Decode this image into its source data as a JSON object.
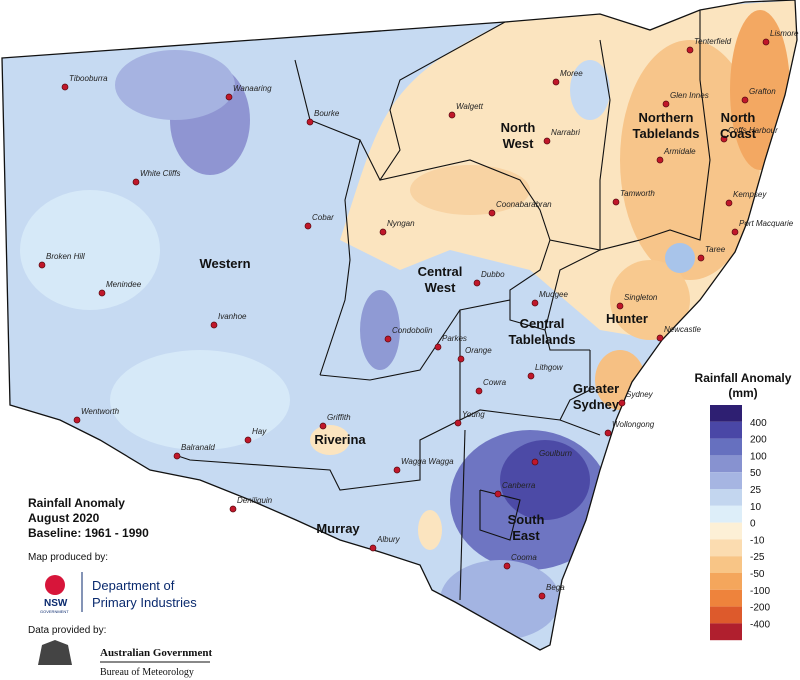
{
  "map": {
    "towns": [
      "Tibooburra",
      "Wanaaring",
      "Bourke",
      "White Cliffs",
      "Cobar",
      "Broken Hill",
      "Menindee",
      "Ivanhoe",
      "Wentworth",
      "Balranald",
      "Hay",
      "Griffith",
      "Deniliquin",
      "Wagga Wagga",
      "Albury",
      "Young",
      "Cowra",
      "Orange",
      "Parkes",
      "Condobolin",
      "Nyngan",
      "Dubbo",
      "Mudgee",
      "Lithgow",
      "Sydney",
      "Wollongong",
      "Canberra",
      "Goulburn",
      "Cooma",
      "Bega",
      "Moree",
      "Walgett",
      "Narrabri",
      "Coonabarabran",
      "Tamworth",
      "Armidale",
      "Glen Innes",
      "Tenterfield",
      "Lismore",
      "Grafton",
      "Coffs Harbour",
      "Kempsey",
      "Port Macquarie",
      "Taree",
      "Singleton",
      "Newcastle"
    ],
    "regions": [
      {
        "lines": [
          "Western"
        ]
      },
      {
        "lines": [
          "North",
          "West"
        ]
      },
      {
        "lines": [
          "Northern",
          "Tablelands"
        ]
      },
      {
        "lines": [
          "North",
          "Coast"
        ]
      },
      {
        "lines": [
          "Central",
          "West"
        ]
      },
      {
        "lines": [
          "Central",
          "Tablelands"
        ]
      },
      {
        "lines": [
          "Hunter"
        ]
      },
      {
        "lines": [
          "Greater",
          "Sydney"
        ]
      },
      {
        "lines": [
          "Riverina"
        ]
      },
      {
        "lines": [
          "Murray"
        ]
      },
      {
        "lines": [
          "South",
          "East"
        ]
      }
    ],
    "legend": {
      "title": "Rainfall Anomaly",
      "unit": "(mm)",
      "values": [
        400,
        200,
        100,
        50,
        25,
        10,
        0,
        -10,
        -25,
        -50,
        -100,
        -200,
        -400
      ],
      "colors": [
        "#2e1f72",
        "#4a47a6",
        "#6670bf",
        "#8792d0",
        "#a6b5e2",
        "#c3d6ef",
        "#ddeef9",
        "#fdf0d6",
        "#fbdcb0",
        "#f8c586",
        "#f4a65c",
        "#ee833c",
        "#dd5a2c",
        "#b01f2e"
      ]
    }
  },
  "caption": {
    "lines": [
      "Rainfall Anomaly",
      "August 2020",
      "Baseline: 1961 - 1990"
    ]
  },
  "credits": {
    "produced_by": "Map produced by:",
    "nsw": "NSW",
    "government": "GOVERNMENT",
    "dpi": [
      "Department of",
      "Primary Industries"
    ],
    "data_by": "Data provided by:",
    "gov": "Australian Government",
    "bom": "Bureau of Meteorology"
  }
}
